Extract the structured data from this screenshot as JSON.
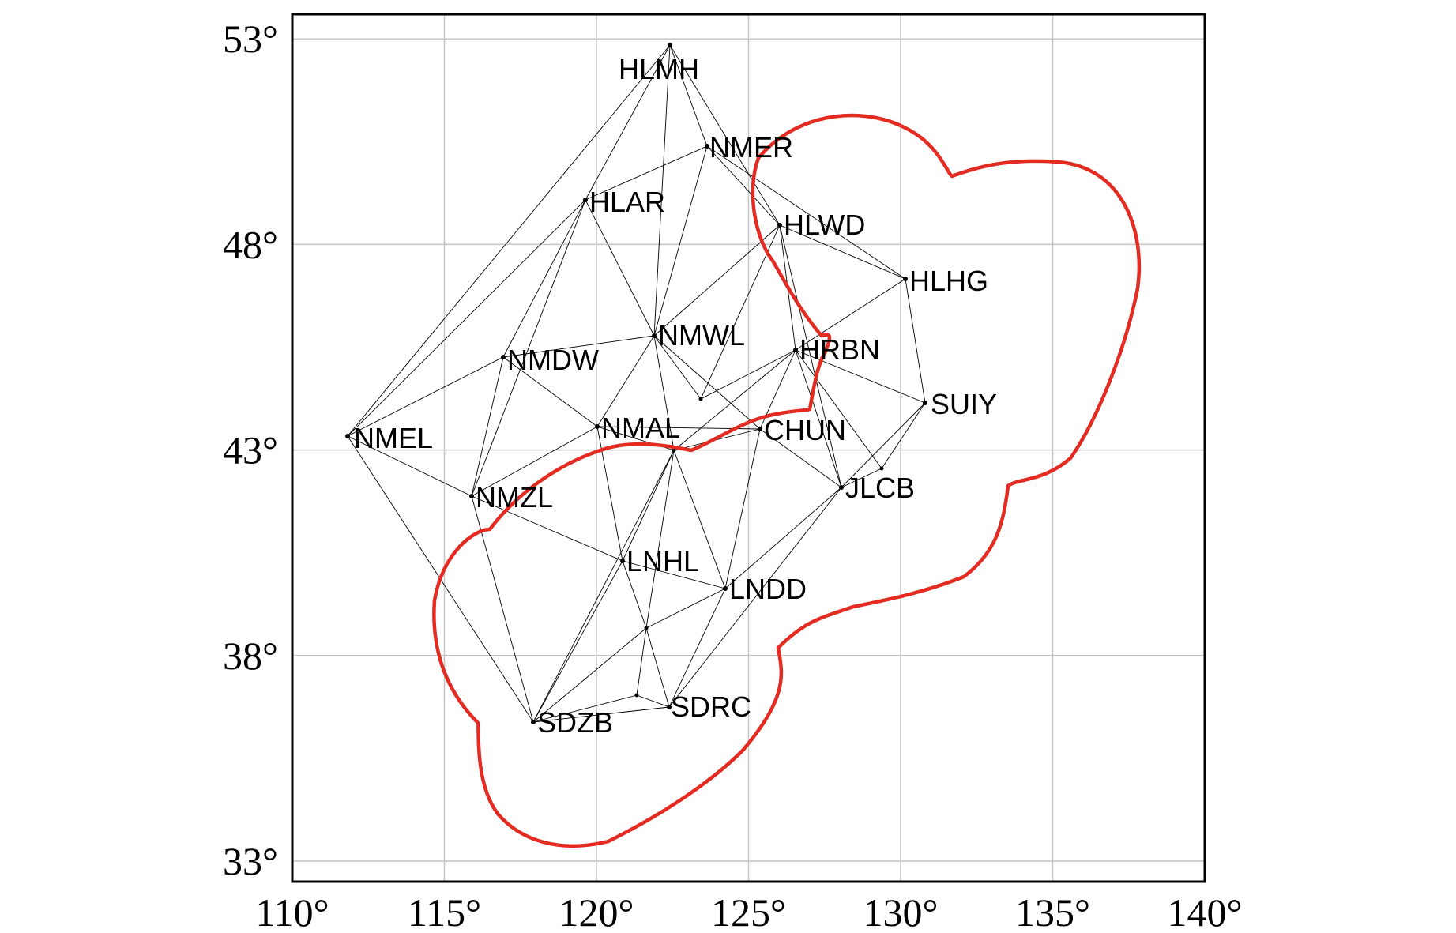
{
  "x_ticks": [
    {
      "lon": 110,
      "label": "110°"
    },
    {
      "lon": 115,
      "label": "115°"
    },
    {
      "lon": 120,
      "label": "120°"
    },
    {
      "lon": 125,
      "label": "125°"
    },
    {
      "lon": 130,
      "label": "130°"
    },
    {
      "lon": 135,
      "label": "135°"
    },
    {
      "lon": 140,
      "label": "140°"
    }
  ],
  "y_ticks": [
    {
      "lat": 53,
      "label": "53°"
    },
    {
      "lat": 48,
      "label": "48°"
    },
    {
      "lat": 43,
      "label": "43°"
    },
    {
      "lat": 38,
      "label": "38°"
    },
    {
      "lat": 33,
      "label": "33°"
    }
  ],
  "extent": {
    "lon_min": 110,
    "lon_max": 140,
    "lat_min": 32.5,
    "lat_max": 53.6
  },
  "stations": [
    {
      "id": "HLMH",
      "label": "HLMH",
      "lon": 122.5,
      "lat": 52.9
    },
    {
      "id": "NMER",
      "label": "NMER",
      "lon": 123.7,
      "lat": 51.0
    },
    {
      "id": "HLAR",
      "label": "HLAR",
      "lon": 119.8,
      "lat": 49.7
    },
    {
      "id": "HLWD",
      "label": "HLWD",
      "lon": 126.2,
      "lat": 48.4
    },
    {
      "id": "HLHG",
      "label": "HLHG",
      "lon": 130.2,
      "lat": 47.4
    },
    {
      "id": "NMWL",
      "label": "NMWL",
      "lon": 122.0,
      "lat": 45.9
    },
    {
      "id": "HRBN",
      "label": "HRBN",
      "lon": 126.6,
      "lat": 45.6
    },
    {
      "id": "NMDW",
      "label": "NMDW",
      "lon": 117.0,
      "lat": 45.5
    },
    {
      "id": "SUIY",
      "label": "SUIY",
      "lon": 130.8,
      "lat": 44.4
    },
    {
      "id": "NMEL",
      "label": "NMEL",
      "lon": 111.9,
      "lat": 43.7
    },
    {
      "id": "NMAL",
      "label": "NMAL",
      "lon": 120.1,
      "lat": 43.9
    },
    {
      "id": "CHUN",
      "label": "CHUN",
      "lon": 125.4,
      "lat": 43.8
    },
    {
      "id": "JLCB",
      "label": "JLCB",
      "lon": 128.1,
      "lat": 42.5
    },
    {
      "id": "NMZL",
      "label": "NMZL",
      "lon": 116.0,
      "lat": 42.3
    },
    {
      "id": "LNHL",
      "label": "LNHL",
      "lon": 120.9,
      "lat": 40.9
    },
    {
      "id": "LNDD",
      "label": "LNDD",
      "lon": 124.3,
      "lat": 40.2
    },
    {
      "id": "SDRC",
      "label": "SDRC",
      "lon": 122.4,
      "lat": 37.3
    },
    {
      "id": "SDZB",
      "label": "SDZB",
      "lon": 118.1,
      "lat": 36.8
    }
  ],
  "colors": {
    "boundary": "#e32b22",
    "links": "#000000",
    "grid": "#c4c4c4"
  }
}
